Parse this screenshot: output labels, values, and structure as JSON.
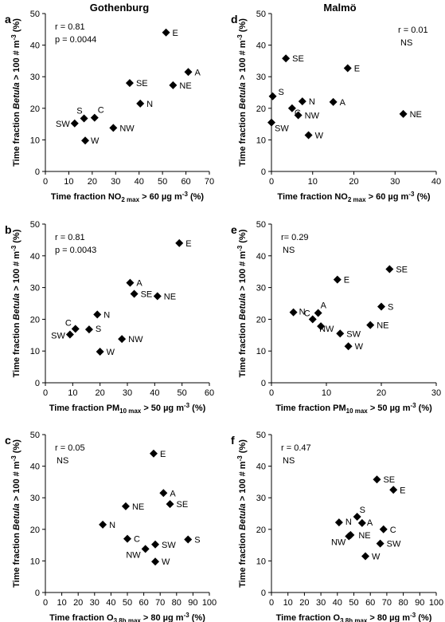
{
  "columns": [
    {
      "title": "Gothenburg"
    },
    {
      "title": "Malmö"
    }
  ],
  "ylabel": {
    "pre": "Time fraction ",
    "italic": "Betula",
    "mid": " > 100 # m",
    "sup": "-3",
    "post": " (%)"
  },
  "chart_data": [
    {
      "letter": "a",
      "type": "scatter",
      "stats": [
        "r = 0.81",
        "p = 0.0044"
      ],
      "xlabel": {
        "pre": "Time fraction NO",
        "sub": "2 max",
        "mid": " > 60 µg m",
        "sup": "-3",
        "post": " (%)"
      },
      "xlim": [
        0,
        70
      ],
      "xticks": [
        0,
        10,
        20,
        30,
        40,
        50,
        60,
        70
      ],
      "ylim": [
        0,
        50
      ],
      "yticks": [
        0,
        10,
        20,
        30,
        40,
        50
      ],
      "points": [
        {
          "label": "E",
          "x": 51.5,
          "y": 44
        },
        {
          "label": "A",
          "x": 61,
          "y": 31.5
        },
        {
          "label": "NE",
          "x": 54.5,
          "y": 27.3
        },
        {
          "label": "SE",
          "x": 36,
          "y": 28
        },
        {
          "label": "N",
          "x": 40.5,
          "y": 21.5
        },
        {
          "label": "NW",
          "x": 29,
          "y": 13.8
        },
        {
          "label": "C",
          "x": 21,
          "y": 17
        },
        {
          "label": "S",
          "x": 16.5,
          "y": 16.8
        },
        {
          "label": "SW",
          "x": 12.5,
          "y": 15.2
        },
        {
          "label": "W",
          "x": 17,
          "y": 9.8
        }
      ]
    },
    {
      "letter": "d",
      "type": "scatter",
      "stats": [
        "r = 0.01",
        "NS"
      ],
      "xlabel": {
        "pre": "Time fraction NO",
        "sub": "2 max",
        "mid": " > 60 µg m",
        "sup": "-3",
        "post": " (%)"
      },
      "xlim": [
        0,
        40
      ],
      "xticks": [
        0,
        10,
        20,
        30,
        40
      ],
      "ylim": [
        0,
        50
      ],
      "yticks": [
        0,
        10,
        20,
        30,
        40,
        50
      ],
      "points": [
        {
          "label": "SE",
          "x": 3.5,
          "y": 35.8
        },
        {
          "label": "E",
          "x": 18.5,
          "y": 32.7
        },
        {
          "label": "S",
          "x": 0.3,
          "y": 23.8
        },
        {
          "label": "N",
          "x": 7.5,
          "y": 22.2
        },
        {
          "label": "A",
          "x": 15,
          "y": 22
        },
        {
          "label": "C",
          "x": 5,
          "y": 20
        },
        {
          "label": "NW",
          "x": 6.5,
          "y": 17.8
        },
        {
          "label": "NE",
          "x": 32,
          "y": 18.2
        },
        {
          "label": "SW",
          "x": 0,
          "y": 15.5
        },
        {
          "label": "W",
          "x": 9,
          "y": 11.5
        }
      ]
    },
    {
      "letter": "b",
      "type": "scatter",
      "stats": [
        "r = 0.81",
        "p = 0.0043"
      ],
      "xlabel": {
        "pre": "Time fraction PM",
        "sub": "10 max",
        "mid": " > 50 µg m",
        "sup": "-3",
        "post": " (%)"
      },
      "xlim": [
        0,
        60
      ],
      "xticks": [
        0,
        10,
        20,
        30,
        40,
        50,
        60
      ],
      "ylim": [
        0,
        50
      ],
      "yticks": [
        0,
        10,
        20,
        30,
        40,
        50
      ],
      "points": [
        {
          "label": "E",
          "x": 49,
          "y": 44
        },
        {
          "label": "A",
          "x": 31,
          "y": 31.5
        },
        {
          "label": "SE",
          "x": 32.5,
          "y": 28
        },
        {
          "label": "NE",
          "x": 41,
          "y": 27.3
        },
        {
          "label": "N",
          "x": 19,
          "y": 21.5
        },
        {
          "label": "C",
          "x": 11,
          "y": 17
        },
        {
          "label": "S",
          "x": 16,
          "y": 16.8
        },
        {
          "label": "SW",
          "x": 9,
          "y": 15.2
        },
        {
          "label": "NW",
          "x": 28,
          "y": 13.8
        },
        {
          "label": "W",
          "x": 20,
          "y": 9.8
        }
      ]
    },
    {
      "letter": "e",
      "type": "scatter",
      "stats": [
        "r= 0.29",
        "NS"
      ],
      "xlabel": {
        "pre": "Time fraction PM",
        "sub": "10 max",
        "mid": " > 50 µg m",
        "sup": "-3",
        "post": " (%)"
      },
      "xlim": [
        0,
        30
      ],
      "xticks": [
        0,
        10,
        20,
        30
      ],
      "ylim": [
        0,
        50
      ],
      "yticks": [
        0,
        10,
        20,
        30,
        40,
        50
      ],
      "points": [
        {
          "label": "SE",
          "x": 21.5,
          "y": 35.8
        },
        {
          "label": "E",
          "x": 12,
          "y": 32.5
        },
        {
          "label": "S",
          "x": 20,
          "y": 24
        },
        {
          "label": "N",
          "x": 4,
          "y": 22.2
        },
        {
          "label": "A",
          "x": 8.5,
          "y": 22
        },
        {
          "label": "C",
          "x": 7.5,
          "y": 20
        },
        {
          "label": "NW",
          "x": 9,
          "y": 17.8
        },
        {
          "label": "NE",
          "x": 18,
          "y": 18.2
        },
        {
          "label": "SW",
          "x": 12.5,
          "y": 15.5
        },
        {
          "label": "W",
          "x": 14,
          "y": 11.5
        }
      ]
    },
    {
      "letter": "c",
      "type": "scatter",
      "stats": [
        "r = 0.05",
        "NS"
      ],
      "xlabel": {
        "pre": "Time fraction O",
        "sub": "3 8h max",
        "mid": " > 80 µg m",
        "sup": "-3",
        "post": " (%)"
      },
      "xlim": [
        0,
        100
      ],
      "xticks": [
        0,
        10,
        20,
        30,
        40,
        50,
        60,
        70,
        80,
        90,
        100
      ],
      "ylim": [
        0,
        50
      ],
      "yticks": [
        0,
        10,
        20,
        30,
        40,
        50
      ],
      "points": [
        {
          "label": "E",
          "x": 66,
          "y": 44
        },
        {
          "label": "A",
          "x": 72,
          "y": 31.5
        },
        {
          "label": "SE",
          "x": 76,
          "y": 28
        },
        {
          "label": "NE",
          "x": 49,
          "y": 27.3
        },
        {
          "label": "N",
          "x": 35,
          "y": 21.5
        },
        {
          "label": "C",
          "x": 50,
          "y": 17
        },
        {
          "label": "S",
          "x": 87,
          "y": 16.8
        },
        {
          "label": "SW",
          "x": 67,
          "y": 15.2
        },
        {
          "label": "NW",
          "x": 61,
          "y": 13.8
        },
        {
          "label": "W",
          "x": 67,
          "y": 9.8
        }
      ]
    },
    {
      "letter": "f",
      "type": "scatter",
      "stats": [
        "r = 0.47",
        "NS"
      ],
      "xlabel": {
        "pre": "Time fraction O",
        "sub": "3 8h max",
        "mid": " > 80 µg m",
        "sup": "-3",
        "post": " (%)"
      },
      "xlim": [
        0,
        100
      ],
      "xticks": [
        0,
        10,
        20,
        30,
        40,
        50,
        60,
        70,
        80,
        90,
        100
      ],
      "ylim": [
        0,
        50
      ],
      "yticks": [
        0,
        10,
        20,
        30,
        40,
        50
      ],
      "points": [
        {
          "label": "SE",
          "x": 64,
          "y": 35.8
        },
        {
          "label": "E",
          "x": 74,
          "y": 32.5
        },
        {
          "label": "S",
          "x": 52,
          "y": 24
        },
        {
          "label": "N",
          "x": 41,
          "y": 22.2
        },
        {
          "label": "A",
          "x": 55,
          "y": 22
        },
        {
          "label": "C",
          "x": 68,
          "y": 20
        },
        {
          "label": "NE",
          "x": 48,
          "y": 18.2
        },
        {
          "label": "NW",
          "x": 47,
          "y": 17.8
        },
        {
          "label": "SW",
          "x": 66,
          "y": 15.5
        },
        {
          "label": "W",
          "x": 57,
          "y": 11.5
        }
      ]
    }
  ]
}
